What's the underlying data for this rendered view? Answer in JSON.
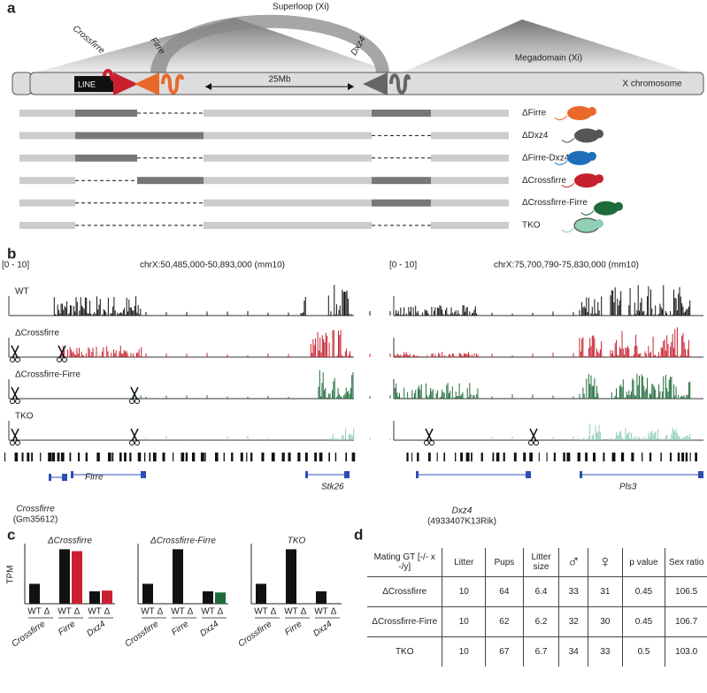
{
  "panel_a": {
    "label": "a",
    "superloop": "Superloop (Xi)",
    "crossfirre": "Crossfirre",
    "firre": "Firre",
    "dxz4": "Dxz4",
    "megadomain": "Megadomain (Xi)",
    "line": "LINE",
    "distance": "25Mb",
    "chromosome": "X chromosome",
    "deletions": [
      "ΔFirre",
      "ΔDxz4",
      "ΔFirre-Dxz4",
      "ΔCrossfirre",
      "ΔCrossfirre-Firre",
      "TKO"
    ]
  },
  "panel_b": {
    "label": "b",
    "range": "[0 - 10]",
    "left_locus": "chrX:50,485,000-50,893,000 (mm10)",
    "right_locus": "chrX:75,700,790-75,830,000 (mm10)",
    "tracks": [
      "WT",
      "ΔCrossfirre",
      "ΔCrossfirre-Firre",
      "TKO"
    ],
    "genes": {
      "crossfirre": "Crossfirre",
      "crossfirre_alias": "(Gm35612)",
      "firre": "Firre",
      "stk26": "Stk26",
      "dxz4": "Dxz4",
      "dxz4_alias": "(4933407K13Rik)",
      "pls3": "Pls3"
    }
  },
  "panel_c": {
    "label": "c"
  },
  "chart_data": [
    {
      "type": "bar",
      "title": "ΔCrossfirre",
      "y_label": "TPM",
      "categories": [
        "Crossfirre",
        "Firre",
        "Dxz4"
      ],
      "ylim": [
        0,
        16
      ],
      "series": [
        {
          "name": "WT",
          "color": "#111111",
          "values": [
            5.3,
            14.5,
            3.3
          ]
        },
        {
          "name": "Δ",
          "color": "#c8202e",
          "values": [
            0,
            14.0,
            3.5
          ]
        }
      ]
    },
    {
      "type": "bar",
      "title": "ΔCrossfirre-Firre",
      "categories": [
        "Crossfirre",
        "Firre",
        "Dxz4"
      ],
      "ylim": [
        0,
        16
      ],
      "series": [
        {
          "name": "WT",
          "color": "#111111",
          "values": [
            5.3,
            14.5,
            3.3
          ]
        },
        {
          "name": "Δ",
          "color": "#1e6b3a",
          "values": [
            0,
            0,
            3.0
          ]
        }
      ]
    },
    {
      "type": "bar",
      "title": "TKO",
      "categories": [
        "Crossfirre",
        "Firre",
        "Dxz4"
      ],
      "ylim": [
        0,
        16
      ],
      "series": [
        {
          "name": "WT",
          "color": "#111111",
          "values": [
            5.3,
            14.5,
            3.3
          ]
        },
        {
          "name": "Δ",
          "color": "#8fcfb4",
          "values": [
            0,
            0,
            0
          ]
        }
      ]
    }
  ],
  "panel_d": {
    "label": "d",
    "table": {
      "header": [
        "Mating GT [-/- x -/y]",
        "Litter",
        "Pups",
        "Litter size",
        "♂",
        "♀",
        "p value",
        "Sex ratio"
      ],
      "rows": [
        [
          "ΔCrossfirre",
          "10",
          "64",
          "6.4",
          "33",
          "31",
          "0.45",
          "106.5"
        ],
        [
          "ΔCrossfirre-Firre",
          "10",
          "62",
          "6.2",
          "32",
          "30",
          "0.45",
          "106.7"
        ],
        [
          "TKO",
          "10",
          "67",
          "6.7",
          "34",
          "33",
          "0.5",
          "103.0"
        ]
      ]
    }
  }
}
